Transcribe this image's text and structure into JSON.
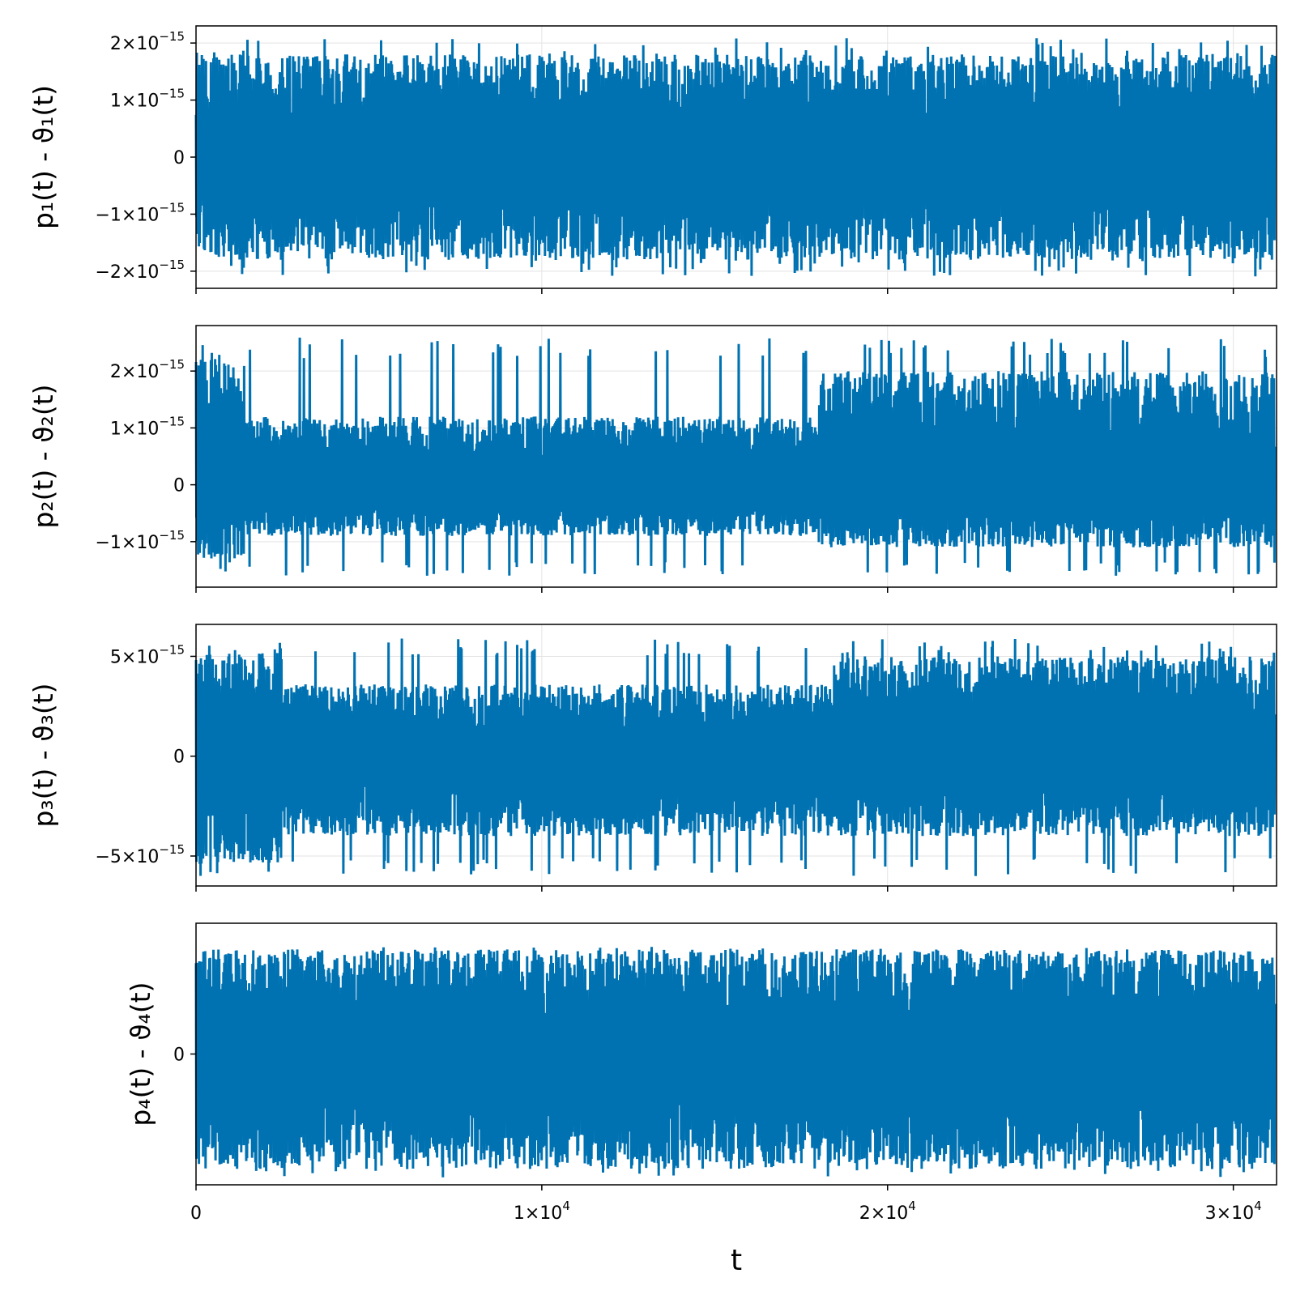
{
  "chart_data": [
    {
      "type": "line",
      "ylabel": "p₁(t) - ϑ₁(t)",
      "xlim": [
        0,
        31250
      ],
      "ylim": [
        -2.3e-15,
        2.3e-15
      ],
      "grid": true,
      "x_ticks": [
        0,
        10000,
        20000,
        30000
      ],
      "y_ticks": [
        {
          "value": 2e-15,
          "mant": "2×10",
          "exp": "−15"
        },
        {
          "value": 1e-15,
          "mant": "1×10",
          "exp": "−15"
        },
        {
          "value": 0,
          "mant": "0",
          "exp": ""
        },
        {
          "value": -1e-15,
          "mant": "−1×10",
          "exp": "−15"
        },
        {
          "value": -2e-15,
          "mant": "−2×10",
          "exp": "−15"
        }
      ],
      "series": [
        {
          "color": "#0072b2",
          "x_range": [
            0,
            31200
          ],
          "envelope_max": 2.1e-15,
          "envelope_min": -2.1e-15,
          "segments": [
            {
              "x": [
                0,
                31200
              ],
              "hi": 1.8e-15,
              "lo": -1.8e-15
            }
          ]
        }
      ]
    },
    {
      "type": "line",
      "ylabel": "p₂(t) - ϑ₂(t)",
      "xlim": [
        0,
        31250
      ],
      "ylim": [
        -1.8e-15,
        2.8e-15
      ],
      "grid": true,
      "x_ticks": [
        0,
        10000,
        20000,
        30000
      ],
      "y_ticks": [
        {
          "value": 2e-15,
          "mant": "2×10",
          "exp": "−15"
        },
        {
          "value": 1e-15,
          "mant": "1×10",
          "exp": "−15"
        },
        {
          "value": 0,
          "mant": "0",
          "exp": ""
        },
        {
          "value": -1e-15,
          "mant": "−1×10",
          "exp": "−15"
        }
      ],
      "series": [
        {
          "color": "#0072b2",
          "x_range": [
            0,
            31200
          ],
          "envelope_max": 2.6e-15,
          "envelope_min": -1.6e-15,
          "segments": [
            {
              "x": [
                0,
                1400
              ],
              "hi": 2.2e-15,
              "lo": -1.3e-15
            },
            {
              "x": [
                1400,
                18000
              ],
              "hi": 1.2e-15,
              "lo": -9e-16
            },
            {
              "x": [
                18000,
                31200
              ],
              "hi": 2e-15,
              "lo": -1.1e-15
            }
          ]
        }
      ]
    },
    {
      "type": "line",
      "ylabel": "p₃(t) - ϑ₃(t)",
      "xlim": [
        0,
        31250
      ],
      "ylim": [
        -6.5e-15,
        6.6e-15
      ],
      "grid": true,
      "x_ticks": [
        0,
        10000,
        20000,
        30000
      ],
      "y_ticks": [
        {
          "value": 5e-15,
          "mant": "5×10",
          "exp": "−15"
        },
        {
          "value": 0,
          "mant": "0",
          "exp": ""
        },
        {
          "value": -5e-15,
          "mant": "−5×10",
          "exp": "−15"
        }
      ],
      "series": [
        {
          "color": "#0072b2",
          "x_range": [
            0,
            31200
          ],
          "envelope_max": 5.9e-15,
          "envelope_min": -6e-15,
          "segments": [
            {
              "x": [
                0,
                2500
              ],
              "hi": 5.2e-15,
              "lo": -5.4e-15
            },
            {
              "x": [
                2500,
                18400
              ],
              "hi": 3.6e-15,
              "lo": -4e-15
            },
            {
              "x": [
                18400,
                31200
              ],
              "hi": 5e-15,
              "lo": -4e-15
            }
          ]
        }
      ]
    },
    {
      "type": "line",
      "ylabel": "p₄(t) - ϑ₄(t)",
      "xlabel": "t",
      "xlim": [
        0,
        31250
      ],
      "ylim": [
        -1.0,
        1.0
      ],
      "grid": false,
      "x_ticks": [
        {
          "value": 0,
          "mant": "0",
          "exp": ""
        },
        {
          "value": 10000,
          "mant": "1×10",
          "exp": "4"
        },
        {
          "value": 20000,
          "mant": "2×10",
          "exp": "4"
        },
        {
          "value": 30000,
          "mant": "3×10",
          "exp": "4"
        }
      ],
      "y_ticks": [
        {
          "value": 0,
          "mant": "0",
          "exp": ""
        }
      ],
      "series": [
        {
          "color": "#0072b2",
          "x_range": [
            0,
            31200
          ],
          "envelope_max": 0.82,
          "envelope_min": -0.95,
          "segments": [
            {
              "x": [
                0,
                31200
              ],
              "hi": 0.8,
              "lo": -0.88
            }
          ]
        }
      ]
    }
  ]
}
